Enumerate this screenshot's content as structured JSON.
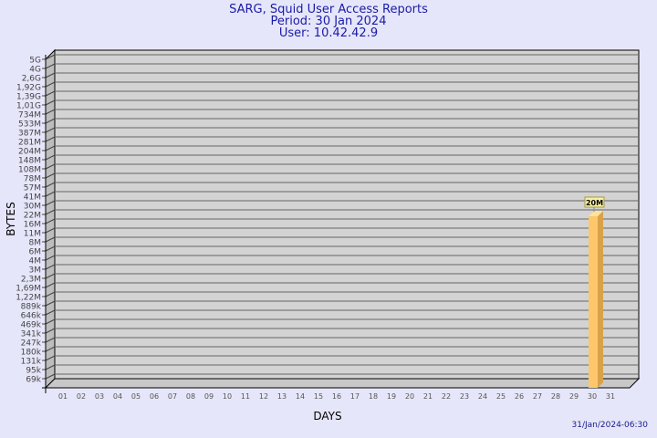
{
  "title_lines": [
    "SARG, Squid User Access Reports",
    "Period: 30 Jan 2024",
    "User: 10.42.42.9"
  ],
  "timestamp": "31/Jan/2024-06:30",
  "chart_data": {
    "type": "bar",
    "title": "SARG, Squid User Access Reports",
    "xlabel": "DAYS",
    "ylabel": "BYTES",
    "y_scale": "log",
    "y_tick_labels": [
      "5G",
      "4G",
      "2,6G",
      "1,92G",
      "1,39G",
      "1,01G",
      "734M",
      "533M",
      "387M",
      "281M",
      "204M",
      "148M",
      "108M",
      "78M",
      "57M",
      "41M",
      "30M",
      "22M",
      "16M",
      "11M",
      "8M",
      "6M",
      "4M",
      "3M",
      "2,3M",
      "1,69M",
      "1,22M",
      "889k",
      "646k",
      "469k",
      "341k",
      "247k",
      "180k",
      "131k",
      "95k",
      "69k"
    ],
    "categories": [
      "01",
      "02",
      "03",
      "04",
      "05",
      "06",
      "07",
      "08",
      "09",
      "10",
      "11",
      "12",
      "13",
      "14",
      "15",
      "16",
      "17",
      "18",
      "19",
      "20",
      "21",
      "22",
      "23",
      "24",
      "25",
      "26",
      "27",
      "28",
      "29",
      "30",
      "31"
    ],
    "bars": [
      {
        "day": "30",
        "value_label": "20M"
      }
    ],
    "grid": true,
    "colors": {
      "background": "#e6e6fa",
      "plot": "#d3d3d3",
      "bar": "#ffc76b",
      "bar_side": "#d9a24a",
      "title": "#1a1aa6"
    }
  }
}
